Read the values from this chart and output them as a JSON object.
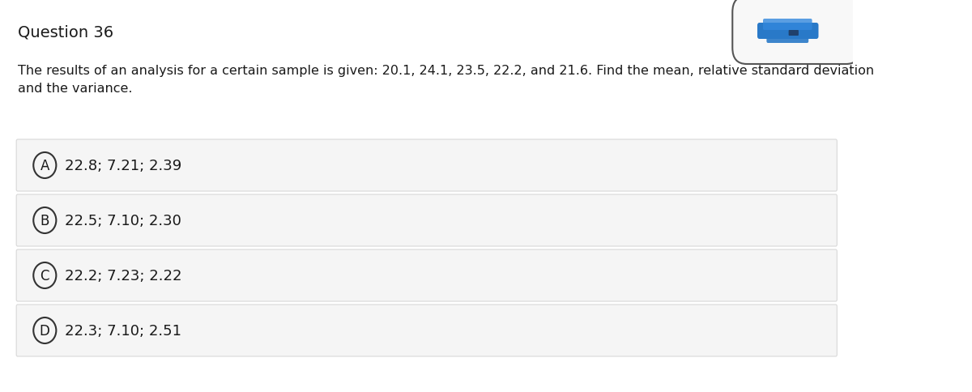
{
  "title": "Question 36",
  "question_text": "The results of an analysis for a certain sample is given: 20.1, 24.1, 23.5, 22.2, and 21.6. Find the mean, relative standard deviation\nand the variance.",
  "options": [
    {
      "label": "A",
      "text": "22.8; 7.21; 2.39"
    },
    {
      "label": "B",
      "text": "22.5; 7.10; 2.30"
    },
    {
      "label": "C",
      "text": "22.2; 7.23; 2.22"
    },
    {
      "label": "D",
      "text": "22.3; 7.10; 2.51"
    }
  ],
  "bg_color": "#ffffff",
  "option_bg_color": "#f5f5f5",
  "option_border_color": "#d8d8d8",
  "title_fontsize": 14,
  "body_fontsize": 11.5,
  "option_fontsize": 13,
  "text_color": "#1a1a1a",
  "circle_color": "#333333"
}
